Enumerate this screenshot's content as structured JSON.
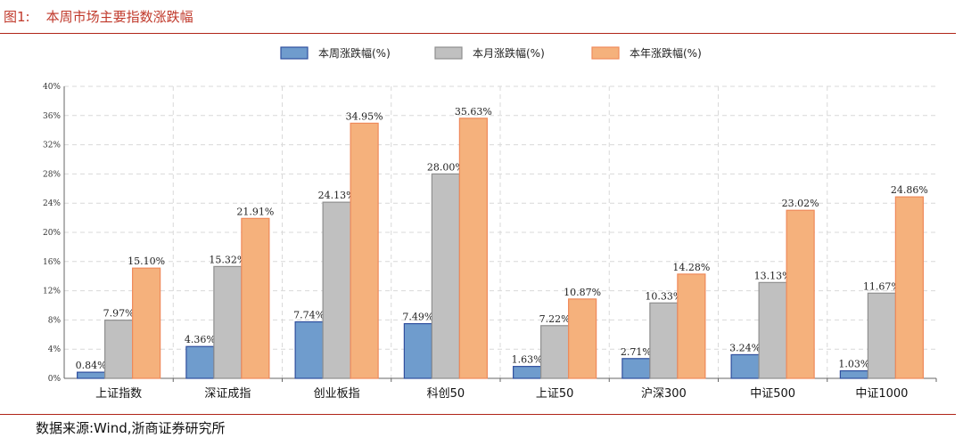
{
  "figure": {
    "number": "图1:",
    "title": "本周市场主要指数涨跌幅",
    "source": "数据来源:Wind,浙商证券研究所"
  },
  "chart_data": {
    "type": "bar",
    "title": "",
    "xlabel": "",
    "ylabel": "",
    "ylim": [
      0,
      40
    ],
    "yticks": [
      "0%",
      "4%",
      "8%",
      "12%",
      "16%",
      "20%",
      "24%",
      "28%",
      "32%",
      "36%",
      "40%"
    ],
    "grid": true,
    "legend_position": "top-center",
    "categories": [
      "上证指数",
      "深证成指",
      "创业板指",
      "科创50",
      "上证50",
      "沪深300",
      "中证500",
      "中证1000"
    ],
    "series": [
      {
        "name": "本周涨跌幅(%)",
        "color": "#6f9ccd",
        "edge": "#2f4f9e",
        "values": [
          0.84,
          4.36,
          7.74,
          7.49,
          1.63,
          2.71,
          3.24,
          1.03
        ],
        "labels": [
          "0.84%",
          "4.36%",
          "7.74%",
          "7.49%",
          "1.63%",
          "2.71%",
          "3.24%",
          "1.03%"
        ]
      },
      {
        "name": "本月涨跌幅(%)",
        "color": "#c0c0c0",
        "edge": "#8f8f8f",
        "values": [
          7.97,
          15.32,
          24.13,
          28.0,
          7.22,
          10.33,
          13.13,
          11.67
        ],
        "labels": [
          "7.97%",
          "15.32%",
          "24.13%",
          "28.00%",
          "7.22%",
          "10.33%",
          "13.13%",
          "11.67%"
        ]
      },
      {
        "name": "本年涨跌幅(%)",
        "color": "#f5b17c",
        "edge": "#ef8a5a",
        "values": [
          15.1,
          21.91,
          34.95,
          35.63,
          10.87,
          14.28,
          23.02,
          24.86
        ],
        "labels": [
          "15.10%",
          "21.91%",
          "34.95%",
          "35.63%",
          "10.87%",
          "14.28%",
          "23.02%",
          "24.86%"
        ]
      }
    ]
  }
}
